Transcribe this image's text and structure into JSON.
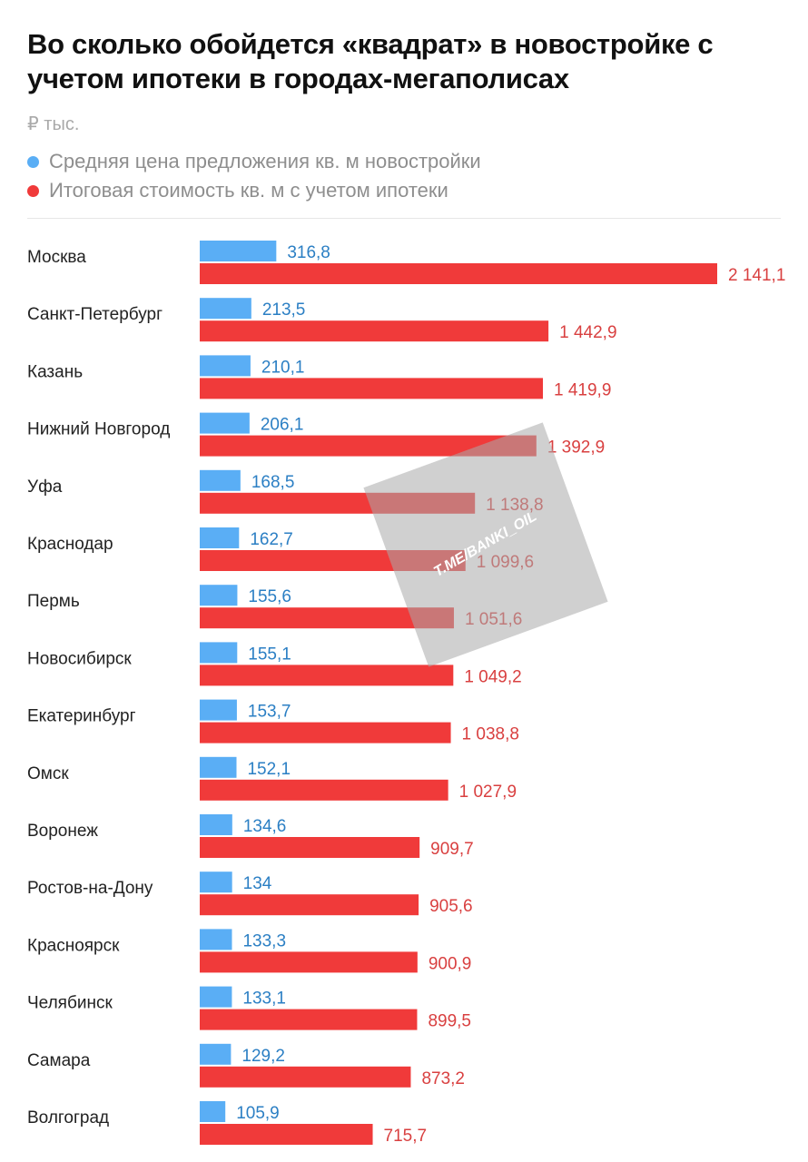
{
  "chart_data": {
    "type": "bar",
    "title": "Во сколько обойдется «квадрат» в новостройке с учетом ипотеки в городах-мегаполисах",
    "unit": "₽ тыс.",
    "categories": [
      "Москва",
      "Санкт-Петербург",
      "Казань",
      "Нижний Новгород",
      "Уфа",
      "Краснодар",
      "Пермь",
      "Новосибирск",
      "Екатеринбург",
      "Омск",
      "Воронеж",
      "Ростов-на-Дону",
      "Красноярск",
      "Челябинск",
      "Самара",
      "Волгоград"
    ],
    "series": [
      {
        "name": "Средняя цена предложения кв. м новостройки",
        "color": "#5aaef5",
        "label_color": "#2b7fc4",
        "values": [
          316.8,
          213.5,
          210.1,
          206.1,
          168.5,
          162.7,
          155.6,
          155.1,
          153.7,
          152.1,
          134.6,
          134,
          133.3,
          133.1,
          129.2,
          105.9
        ],
        "labels": [
          "316,8",
          "213,5",
          "210,1",
          "206,1",
          "168,5",
          "162,7",
          "155,6",
          "155,1",
          "153,7",
          "152,1",
          "134,6",
          "134",
          "133,3",
          "133,1",
          "129,2",
          "105,9"
        ]
      },
      {
        "name": "Итоговая стоимость кв. м с учетом ипотеки",
        "color": "#f03a3a",
        "label_color": "#d94040",
        "values": [
          2141.1,
          1442.9,
          1419.9,
          1392.9,
          1138.8,
          1099.6,
          1051.6,
          1049.2,
          1038.8,
          1027.9,
          909.7,
          905.6,
          900.9,
          899.5,
          873.2,
          715.7
        ],
        "labels": [
          "2 141,1",
          "1 442,9",
          "1 419,9",
          "1 392,9",
          "1 138,8",
          "1 099,6",
          "1 051,6",
          "1 049,2",
          "1 038,8",
          "1 027,9",
          "909,7",
          "905,6",
          "900,9",
          "899,5",
          "873,2",
          "715,7"
        ]
      }
    ],
    "legend": "top-left",
    "grid": false
  },
  "watermark": {
    "text": "T.ME/BANKI_OIL"
  }
}
